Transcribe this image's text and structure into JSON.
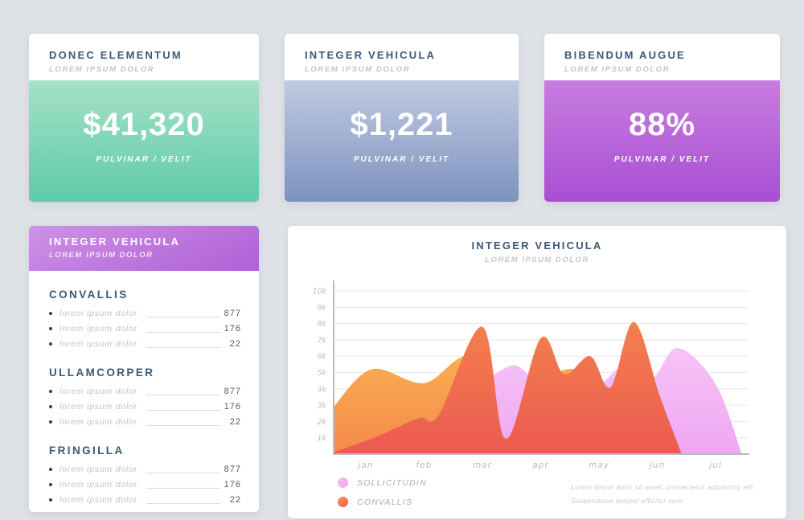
{
  "page": {
    "background": "#dfe2e6",
    "heading_color": "#3d5778",
    "muted_color": "#bfc4cc"
  },
  "stat_cards": [
    {
      "title": "DONEC ELEMENTUM",
      "subtitle": "LOREM IPSUM DOLOR",
      "value": "$41,320",
      "caption": "PULVINAR / VELIT",
      "gradient_top": "#a5e1c6",
      "gradient_bottom": "#5ecbaa"
    },
    {
      "title": "INTEGER VEHICULA",
      "subtitle": "LOREM IPSUM DOLOR",
      "value": "$1,221",
      "caption": "PULVINAR / VELIT",
      "gradient_top": "#c0cbe1",
      "gradient_bottom": "#7e92bf"
    },
    {
      "title": "BIBENDUM AUGUE",
      "subtitle": "LOREM IPSUM DOLOR",
      "value": "88%",
      "caption": "PULVINAR / VELIT",
      "gradient_top": "#c77de0",
      "gradient_bottom": "#a94ed3"
    }
  ],
  "list_card": {
    "title": "INTEGER VEHICULA",
    "subtitle": "LOREM IPSUM DOLOR",
    "header_gradient_top": "#cd92e6",
    "header_gradient_bottom": "#b05fd6",
    "sections": [
      {
        "heading": "CONVALLIS",
        "items": [
          {
            "label": "lorem ipsum dolor",
            "value": "877"
          },
          {
            "label": "lorem ipsum dolor",
            "value": "176"
          },
          {
            "label": "lorem ipsum dolor",
            "value": "22"
          }
        ]
      },
      {
        "heading": "ULLAMCORPER",
        "items": [
          {
            "label": "lorem ipsum dolor",
            "value": "877"
          },
          {
            "label": "lorem ipsum dolor",
            "value": "176"
          },
          {
            "label": "lorem ipsum dolor",
            "value": "22"
          }
        ]
      },
      {
        "heading": "FRINGILLA",
        "items": [
          {
            "label": "lorem ipsum dolor",
            "value": "877"
          },
          {
            "label": "lorem ipsum dolor",
            "value": "176"
          },
          {
            "label": "lorem ipsum dolor",
            "value": "22"
          }
        ]
      }
    ]
  },
  "chart_card": {
    "title": "INTEGER VEHICULA",
    "subtitle": "LOREM IPSUM DOLOR",
    "note_line1": "Lorem ipsum dolor sit amet, consectetur adipiscing elit.",
    "note_line2": "Suspendisse tempor efficitur sem"
  },
  "chart_data": {
    "type": "area",
    "title": "INTEGER VEHICULA",
    "subtitle": "LOREM IPSUM DOLOR",
    "x_categories": [
      "jan",
      "feb",
      "mar",
      "apr",
      "may",
      "jun",
      "jul"
    ],
    "y_ticks": [
      "10k",
      "9k",
      "8k",
      "7k",
      "6k",
      "5k",
      "4k",
      "3k",
      "2k",
      "1k"
    ],
    "ylim_k": [
      0,
      10
    ],
    "grid": true,
    "legend_position": "bottom-left",
    "legend": [
      {
        "label": "SOLLICITUDIN",
        "color_top": "#f6c0f6",
        "color_bottom": "#eda3ee"
      },
      {
        "label": "CONVALLIS",
        "color_top": "#f59b4c",
        "color_bottom": "#ee5d50"
      }
    ],
    "series": [
      {
        "name": "sollicitudin",
        "fill_top": "#f6c3f7",
        "fill_bottom": "#efa7f1",
        "points_month_valueK": [
          [
            0.8,
            0
          ],
          [
            1.6,
            1.2
          ],
          [
            2.49,
            5.5
          ],
          [
            3.05,
            4.7
          ],
          [
            3.6,
            5.4
          ],
          [
            4.2,
            3.3
          ],
          [
            4.9,
            3.9
          ],
          [
            5.42,
            5.4
          ],
          [
            5.9,
            4.6
          ],
          [
            6.35,
            6.5
          ],
          [
            7.0,
            4.3
          ],
          [
            7.45,
            0
          ]
        ]
      },
      {
        "name": "convallis-secondary",
        "fill_top": "#f9ae50",
        "fill_bottom": "#f5894b",
        "points_month_valueK": [
          [
            0.45,
            2.9
          ],
          [
            1.1,
            5.2
          ],
          [
            2.0,
            4.35
          ],
          [
            2.8,
            5.9
          ],
          [
            3.4,
            1.0
          ],
          [
            4.2,
            4.8
          ],
          [
            4.9,
            4.8
          ],
          [
            5.6,
            1.8
          ],
          [
            6.0,
            0.9
          ],
          [
            6.42,
            0
          ]
        ]
      },
      {
        "name": "convallis",
        "fill_top": "#f3804c",
        "fill_bottom": "#ec5a51",
        "points_month_valueK": [
          [
            0.45,
            0.1
          ],
          [
            1.2,
            1.1
          ],
          [
            1.9,
            2.2
          ],
          [
            2.25,
            2.4
          ],
          [
            3.0,
            7.8
          ],
          [
            3.4,
            0.9
          ],
          [
            4.0,
            7.1
          ],
          [
            4.4,
            4.9
          ],
          [
            4.85,
            6.0
          ],
          [
            5.2,
            4.1
          ],
          [
            5.6,
            8.1
          ],
          [
            6.05,
            3.5
          ],
          [
            6.42,
            0
          ]
        ]
      }
    ],
    "axis_color": "#b8bcc3",
    "grid_color": "#ececef"
  }
}
